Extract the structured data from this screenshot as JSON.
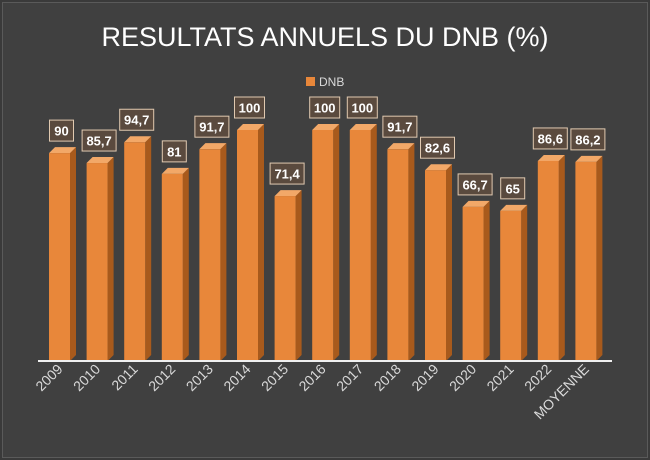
{
  "chart_data": {
    "type": "bar",
    "title": "RESULTATS ANNUELS DU DNB (%)",
    "xlabel": "",
    "ylabel": "",
    "legend_position": "top",
    "grid": false,
    "ylim": [
      0,
      100
    ],
    "categories": [
      "2009",
      "2010",
      "2011",
      "2012",
      "2013",
      "2014",
      "2015",
      "2016",
      "2017",
      "2018",
      "2019",
      "2020",
      "2021",
      "2022",
      "MOYENNE"
    ],
    "series": [
      {
        "name": "DNB",
        "values": [
          90,
          85.7,
          94.7,
          81,
          91.7,
          100,
          71.4,
          100,
          100,
          91.7,
          82.6,
          66.7,
          65,
          86.6,
          86.2
        ],
        "value_labels": [
          "90",
          "85,7",
          "94,7",
          "81",
          "91,7",
          "100",
          "71,4",
          "100",
          "100",
          "91,7",
          "82,6",
          "66,7",
          "65",
          "86,6",
          "86,2"
        ]
      }
    ],
    "colors": {
      "bar_front": "#e8873a",
      "bar_side": "#a85a1c",
      "bar_top": "#f2a868",
      "label_bg": "#5a4a3e",
      "label_border": "#e0c9b0",
      "text": "#ffffff",
      "axis_text": "#d9d9d9",
      "background": "#404040"
    }
  }
}
